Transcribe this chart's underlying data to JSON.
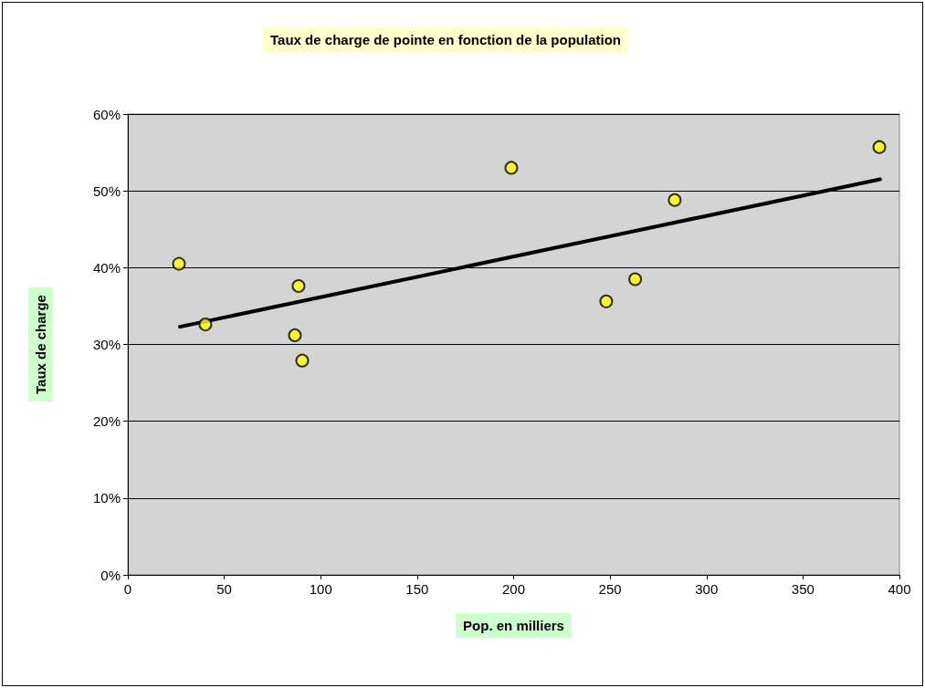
{
  "chart_data": {
    "type": "scatter",
    "title": "Taux de charge de pointe en fonction de la population",
    "xlabel": "Pop. en milliers",
    "ylabel": "Taux de charge",
    "series": [
      {
        "color": "#ffff00",
        "x": [
          26.5,
          40.2,
          88.5,
          86.6,
          90.4,
          198.8,
          248,
          263,
          283.5,
          389.6
        ],
        "values": [
          40.5,
          32.6,
          37.6,
          31.2,
          27.9,
          53,
          35.6,
          38.5,
          48.8,
          55.7
        ]
      },
      {
        "type": "line",
        "color": "#000000",
        "marker": "none",
        "x": [
          27,
          390
        ],
        "values": [
          32.3,
          51.5
        ]
      }
    ],
    "xlim": [
      0,
      400
    ],
    "xticks": [
      0,
      50,
      100,
      150,
      200,
      250,
      300,
      350,
      400
    ],
    "ylim": [
      0,
      60
    ],
    "yticks": [
      {
        "value": 0,
        "label": "0%"
      },
      {
        "value": 10,
        "label": "10%"
      },
      {
        "value": 20,
        "label": "20%"
      },
      {
        "value": 30,
        "label": "30%"
      },
      {
        "value": 40,
        "label": "40%"
      },
      {
        "value": 50,
        "label": "50%"
      },
      {
        "value": 60,
        "label": "60%"
      }
    ],
    "grid": "y",
    "marker": "circle"
  }
}
